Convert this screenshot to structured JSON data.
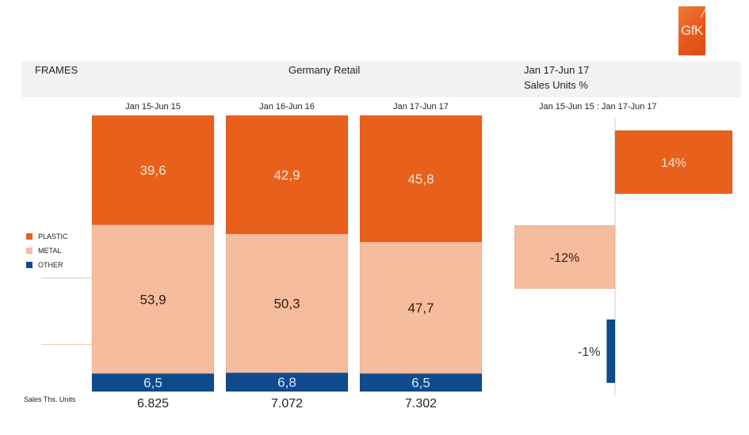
{
  "header": {
    "category": "FRAMES",
    "market": "Germany Retail",
    "period": "Jan 17-Jun 17",
    "measure": "Sales Units %"
  },
  "logo": {
    "text": "GfK",
    "icon": "gfk-logo-icon"
  },
  "footer": {
    "totals_label": "Sales Ths. Units"
  },
  "colors": {
    "plastic": "#e8601c",
    "metal": "#f5bc9e",
    "other": "#0f4a8c"
  },
  "chart_data": [
    {
      "type": "bar",
      "stacked": true,
      "title": "FRAMES - Germany Retail - Sales Units %",
      "categories": [
        "Jan 15-Jun 15",
        "Jan 16-Jun 16",
        "Jan 17-Jun 17"
      ],
      "series": [
        {
          "name": "OTHER",
          "values": [
            6.5,
            6.8,
            6.5
          ],
          "labels": [
            "6,5",
            "6,8",
            "6,5"
          ]
        },
        {
          "name": "METAL",
          "values": [
            53.9,
            50.3,
            47.7
          ],
          "labels": [
            "53,9",
            "50,3",
            "47,7"
          ]
        },
        {
          "name": "PLASTIC",
          "values": [
            39.6,
            42.9,
            45.8
          ],
          "labels": [
            "39,6",
            "42,9",
            "45,8"
          ]
        }
      ],
      "totals": {
        "label": "Sales Ths. Units",
        "values": [
          "6.825",
          "7.072",
          "7.302"
        ]
      },
      "legend": {
        "entries": [
          "PLASTIC",
          "METAL",
          "OTHER"
        ],
        "position": "left"
      },
      "ylim": [
        0,
        100
      ],
      "grid": false
    },
    {
      "type": "bar",
      "orientation": "horizontal",
      "title": "Jan 15-Jun 15 : Jan 17-Jun 17",
      "categories": [
        "PLASTIC",
        "METAL",
        "OTHER"
      ],
      "values": [
        14,
        -12,
        -1
      ],
      "labels": [
        "14%",
        "-12%",
        "-1%"
      ],
      "xlim": [
        -14,
        14
      ],
      "grid": false
    }
  ]
}
